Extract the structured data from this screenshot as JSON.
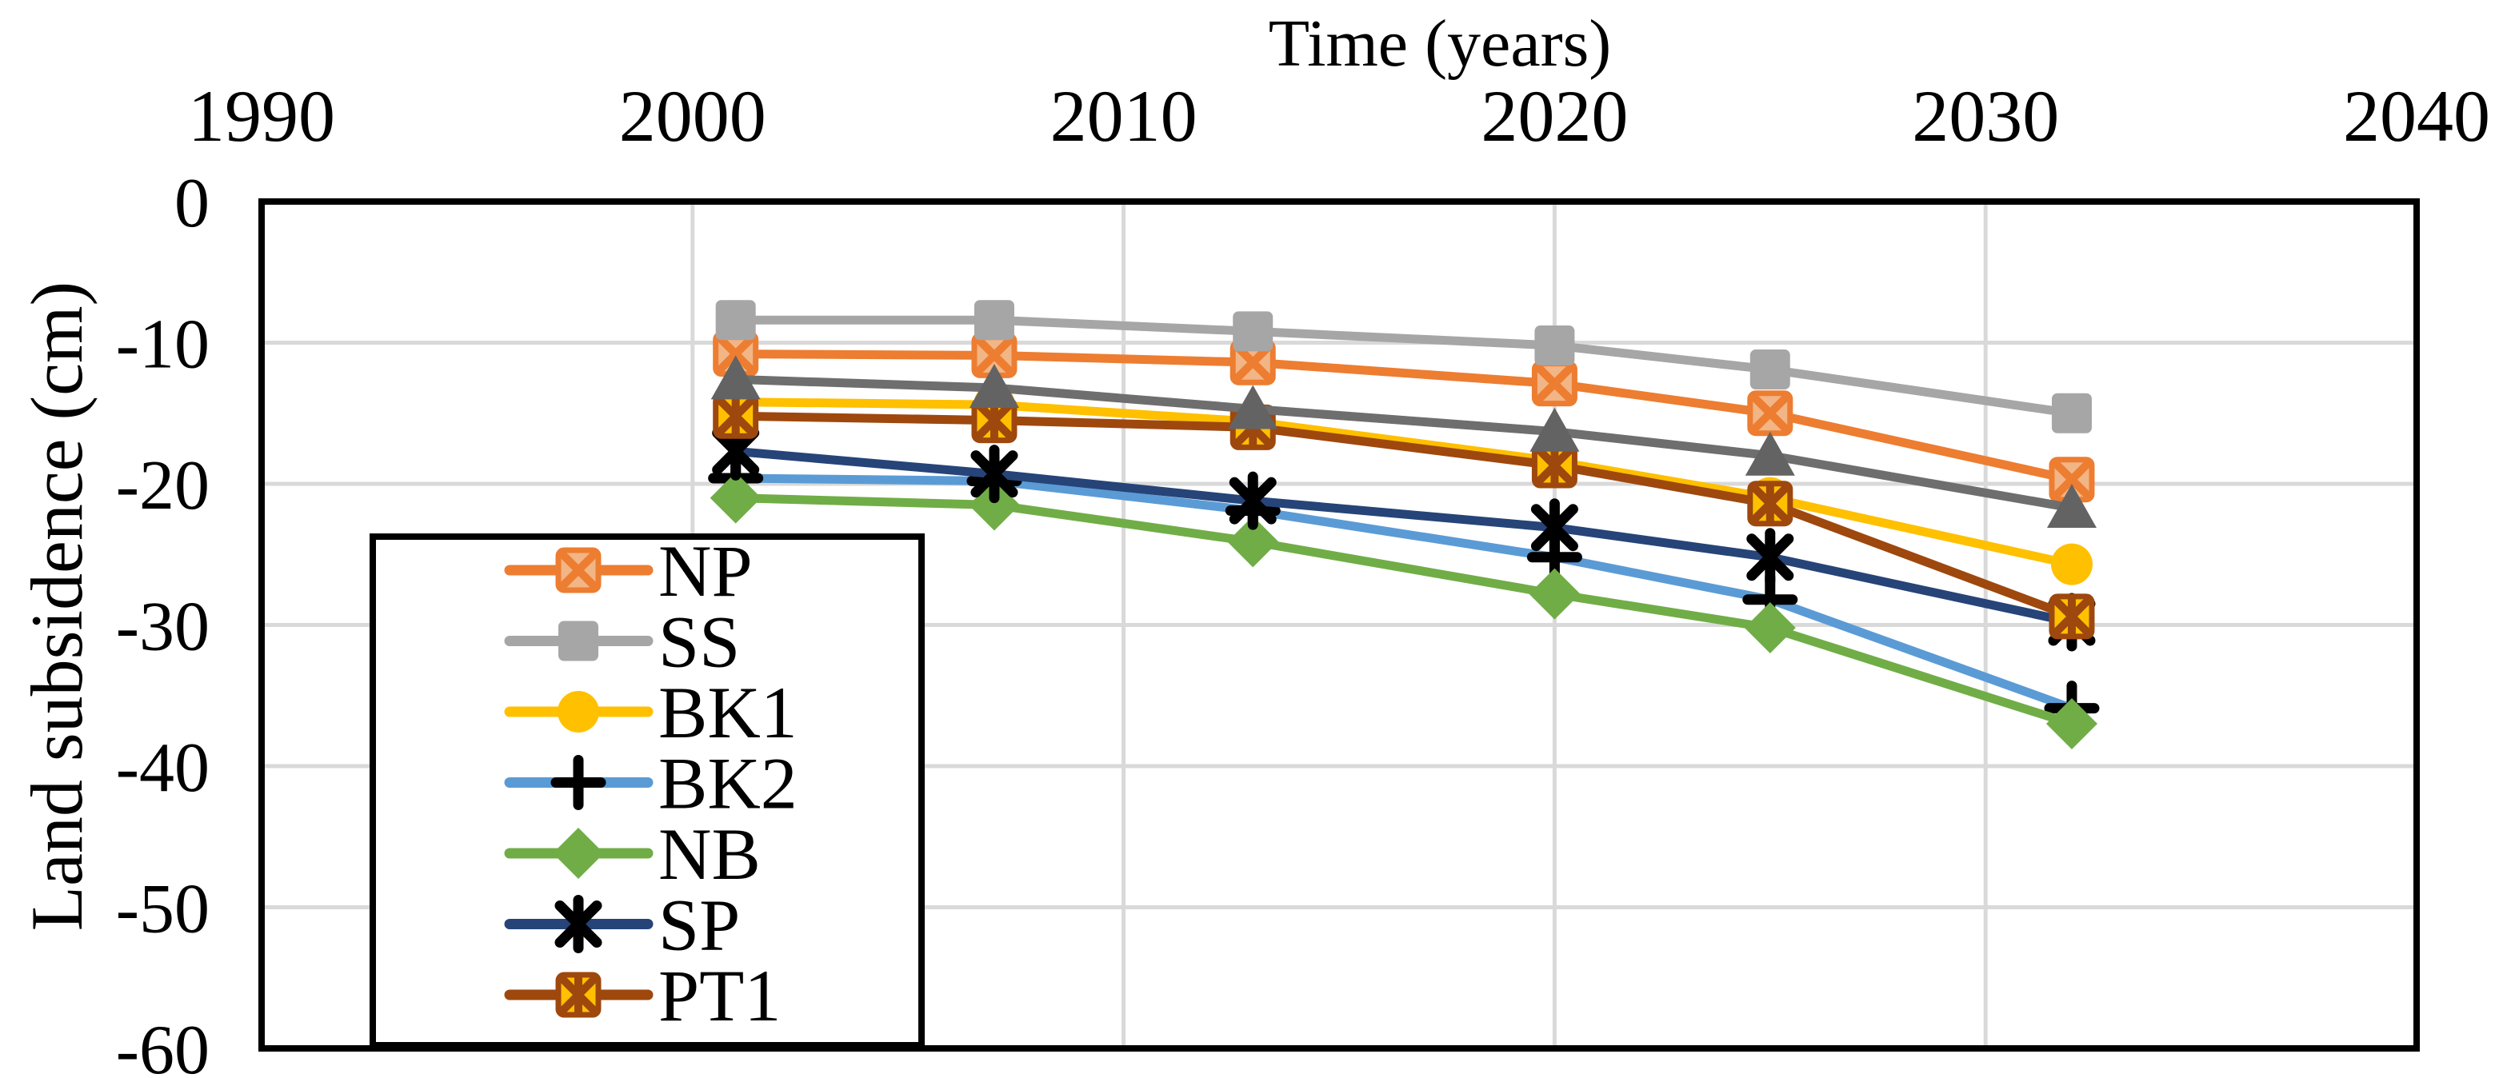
{
  "chart_data": {
    "type": "line",
    "title": "",
    "x_axis": {
      "label": "Time (years)",
      "position": "top",
      "min": 1990,
      "max": 2040,
      "ticks": [
        1990,
        2000,
        2010,
        2020,
        2030,
        2040
      ]
    },
    "y_axis": {
      "label": "Land subsidence (cm)",
      "min": -60,
      "max": 0,
      "ticks": [
        0,
        -10,
        -20,
        -30,
        -40,
        -50,
        -60
      ]
    },
    "grid": true,
    "gridline_color": "#D9D9D9",
    "border_color": "#000000",
    "background_color": "#FFFFFF",
    "x": [
      2001,
      2007,
      2013,
      2020,
      2025,
      2032
    ],
    "series": [
      {
        "name": "NP",
        "in_legend": true,
        "color": "#ED7D31",
        "marker": "square-x",
        "marker_fill": "#F2B585",
        "marker_stroke": "#ED7D31",
        "values": [
          -10.8,
          -10.9,
          -11.4,
          -12.9,
          -15.0,
          -19.7
        ]
      },
      {
        "name": "SS",
        "in_legend": true,
        "color": "#A6A6A6",
        "marker": "square",
        "marker_fill": "#A6A6A6",
        "marker_stroke": "#A6A6A6",
        "values": [
          -8.4,
          -8.4,
          -9.2,
          -10.2,
          -11.9,
          -15.0
        ]
      },
      {
        "name": "BK1",
        "in_legend": true,
        "color": "#FFC000",
        "marker": "circle",
        "marker_fill": "#FFC000",
        "marker_stroke": "#FFC000",
        "values": [
          -14.2,
          -14.4,
          -15.6,
          -18.4,
          -21.0,
          -25.7
        ]
      },
      {
        "name": "BK2",
        "in_legend": true,
        "color": "#5B9BD5",
        "marker": "plus",
        "marker_fill": "#000000",
        "marker_stroke": "#000000",
        "values": [
          -19.6,
          -19.8,
          -21.9,
          -25.2,
          -28.2,
          -35.9
        ]
      },
      {
        "name": "NB",
        "in_legend": true,
        "color": "#70AD47",
        "marker": "diamond",
        "marker_fill": "#70AD47",
        "marker_stroke": "#70AD47",
        "values": [
          -21.0,
          -21.5,
          -24.1,
          -27.8,
          -30.2,
          -37.0
        ]
      },
      {
        "name": "SP",
        "in_legend": true,
        "color": "#264478",
        "marker": "asterisk",
        "marker_fill": "#000000",
        "marker_stroke": "#000000",
        "values": [
          -17.7,
          -19.3,
          -21.2,
          -23.1,
          -25.2,
          -29.8
        ]
      },
      {
        "name": "PT1",
        "in_legend": true,
        "color": "#9E480E",
        "marker": "square-asterisk",
        "marker_fill": "#FFC000",
        "marker_stroke": "#9E480E",
        "values": [
          -15.2,
          -15.5,
          -16.0,
          -18.7,
          -21.4,
          -29.4
        ]
      },
      {
        "name": "",
        "in_legend": false,
        "color": "#6E6E6E",
        "marker": "triangle",
        "marker_fill": "#636363",
        "marker_stroke": "#636363",
        "values": [
          -12.6,
          -13.2,
          -14.7,
          -16.3,
          -18.0,
          -21.7
        ]
      }
    ],
    "legend": {
      "position": "inside top-left of plot",
      "entries": [
        "NP",
        "SS",
        "BK1",
        "BK2",
        "NB",
        "SP",
        "PT1"
      ]
    }
  }
}
